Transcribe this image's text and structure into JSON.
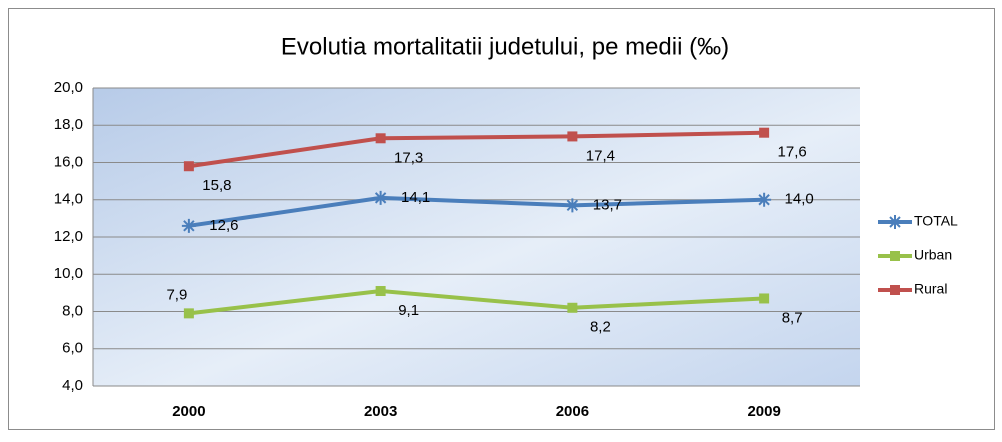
{
  "chart_data": {
    "type": "line",
    "title": "Evolutia mortalitatii  judetului, pe medii (‰)",
    "categories": [
      "2000",
      "2003",
      "2006",
      "2009"
    ],
    "series": [
      {
        "name": "TOTAL",
        "color": "#4a7ebb",
        "marker": "star",
        "values": [
          12.6,
          14.1,
          13.7,
          14.0
        ],
        "value_labels": [
          "12,6",
          "14,1",
          "13,7",
          "14,0"
        ]
      },
      {
        "name": "Urban",
        "color": "#98c14a",
        "marker": "square",
        "values": [
          7.9,
          9.1,
          8.2,
          8.7
        ],
        "value_labels": [
          "7,9",
          "9,1",
          "8,2",
          "8,7"
        ]
      },
      {
        "name": "Rural",
        "color": "#c0504d",
        "marker": "square",
        "values": [
          15.8,
          17.3,
          17.4,
          17.6
        ],
        "value_labels": [
          "15,8",
          "17,3",
          "17,4",
          "17,6"
        ]
      }
    ],
    "ylim": [
      4,
      20
    ],
    "yticks": [
      {
        "value": 4,
        "label": "4,0"
      },
      {
        "value": 6,
        "label": "6,0"
      },
      {
        "value": 8,
        "label": "8,0"
      },
      {
        "value": 10,
        "label": "10,0"
      },
      {
        "value": 12,
        "label": "12,0"
      },
      {
        "value": 14,
        "label": "14,0"
      },
      {
        "value": 16,
        "label": "16,0"
      },
      {
        "value": 18,
        "label": "18,0"
      },
      {
        "value": 20,
        "label": "20,0"
      }
    ],
    "grid": true,
    "legend": "right"
  }
}
